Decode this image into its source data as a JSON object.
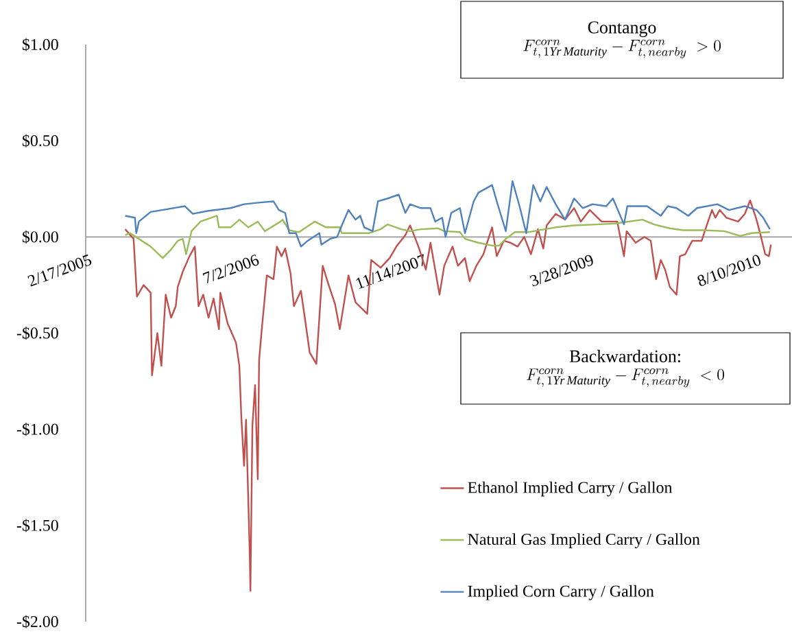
{
  "chart_data": {
    "type": "line",
    "xlim": [
      "2005-02-07",
      "2010-11-18"
    ],
    "xticks": [
      {
        "value": "2005-02-17",
        "label": "2/17/2005"
      },
      {
        "value": "2006-07-02",
        "label": "7/2/2006"
      },
      {
        "value": "2007-11-14",
        "label": "11/14/2007"
      },
      {
        "value": "2009-03-28",
        "label": "3/28/2009"
      },
      {
        "value": "2010-08-10",
        "label": "8/10/2010"
      }
    ],
    "ylim": [
      -2,
      1
    ],
    "yticks": [
      {
        "value": 1,
        "label": "$1.00"
      },
      {
        "value": 0.5,
        "label": "$0.50"
      },
      {
        "value": 0,
        "label": "$0.00"
      },
      {
        "value": -0.5,
        "label": "-$0.50"
      },
      {
        "value": -1,
        "label": "-$1.00"
      },
      {
        "value": -1.5,
        "label": "-$1.50"
      },
      {
        "value": -2,
        "label": "-$2.00"
      }
    ],
    "legend": "bottom right",
    "annotations": [
      "Contango",
      "F^{corn}_{t,\\,1\\mathit{Yr\\,Maturity}} - F^{corn}_{t,\\,nearby} \\; > 0",
      "Backwardation:",
      "F^{corn}_{t,\\,1\\mathit{Yr\\,Maturity}} - F^{corn}_{t,\\,nearby} \\; < 0"
    ],
    "series": [
      {
        "name": "Ethanol Implied Carry / Gallon",
        "color": "#c0504d",
        "x": [
          "2005-06-05",
          "2005-06-30",
          "2005-07-10",
          "2005-07-30",
          "2005-08-20",
          "2005-08-24",
          "2005-09-09",
          "2005-09-21",
          "2005-10-04",
          "2005-10-20",
          "2005-11-03",
          "2005-11-09",
          "2005-11-24",
          "2005-12-14",
          "2005-12-30",
          "2006-01-10",
          "2006-01-24",
          "2006-02-09",
          "2006-02-24",
          "2006-03-12",
          "2006-03-16",
          "2006-04-07",
          "2006-05-02",
          "2006-05-12",
          "2006-05-18",
          "2006-05-26",
          "2006-06-01",
          "2006-06-08",
          "2006-06-12",
          "2006-06-14",
          "2006-06-20",
          "2006-06-28",
          "2006-07-06",
          "2006-07-10",
          "2006-07-18",
          "2006-08-02",
          "2006-08-22",
          "2006-09-01",
          "2006-09-15",
          "2006-09-26",
          "2006-10-12",
          "2006-10-22",
          "2006-11-12",
          "2006-11-26",
          "2006-12-08",
          "2006-12-28",
          "2007-01-16",
          "2007-02-01",
          "2007-02-22",
          "2007-03-08",
          "2007-04-03",
          "2007-04-24",
          "2007-05-29",
          "2007-06-10",
          "2007-07-08",
          "2007-08-04",
          "2007-08-24",
          "2007-09-20",
          "2007-10-04",
          "2007-10-18",
          "2007-10-31",
          "2007-11-20",
          "2007-12-04",
          "2007-12-31",
          "2008-01-14",
          "2008-02-08",
          "2008-02-24",
          "2008-03-16",
          "2008-03-30",
          "2008-04-19",
          "2008-05-10",
          "2008-06-05",
          "2008-06-19",
          "2008-07-10",
          "2008-07-30",
          "2008-08-20",
          "2008-09-09",
          "2008-09-29",
          "2008-10-20",
          "2008-11-05",
          "2008-11-15",
          "2008-12-12",
          "2009-01-09",
          "2009-02-05",
          "2009-02-25",
          "2009-03-24",
          "2009-04-28",
          "2009-06-14",
          "2009-07-04",
          "2009-07-12",
          "2009-08-08",
          "2009-09-03",
          "2009-09-22",
          "2009-10-08",
          "2009-10-22",
          "2009-11-04",
          "2009-11-18",
          "2009-12-08",
          "2009-12-18",
          "2010-01-03",
          "2010-01-24",
          "2010-02-21",
          "2010-03-14",
          "2010-03-24",
          "2010-04-03",
          "2010-04-16",
          "2010-05-06",
          "2010-06-10",
          "2010-06-30",
          "2010-07-16",
          "2010-08-04",
          "2010-08-16",
          "2010-08-30",
          "2010-09-10",
          "2010-09-16"
        ],
        "values": [
          0.04,
          -0.01,
          -0.31,
          -0.25,
          -0.29,
          -0.72,
          -0.5,
          -0.67,
          -0.3,
          -0.42,
          -0.36,
          -0.26,
          -0.18,
          -0.1,
          -0.05,
          -0.36,
          -0.3,
          -0.42,
          -0.32,
          -0.48,
          -0.29,
          -0.45,
          -0.55,
          -0.67,
          -0.94,
          -1.19,
          -0.95,
          -1.39,
          -1.65,
          -1.84,
          -0.98,
          -0.77,
          -1.26,
          -0.64,
          -0.48,
          -0.2,
          -0.22,
          -0.05,
          -0.1,
          -0.06,
          -0.19,
          -0.36,
          -0.28,
          -0.45,
          -0.6,
          -0.66,
          -0.15,
          -0.24,
          -0.35,
          -0.48,
          -0.2,
          -0.34,
          -0.4,
          -0.12,
          -0.16,
          -0.11,
          -0.05,
          0.01,
          0.06,
          0.0,
          -0.06,
          -0.17,
          -0.03,
          -0.3,
          -0.15,
          -0.05,
          -0.15,
          -0.11,
          -0.23,
          -0.15,
          -0.09,
          0.05,
          -0.1,
          -0.02,
          -0.03,
          -0.05,
          0.0,
          -0.09,
          0.04,
          -0.06,
          0.06,
          0.12,
          0.09,
          0.15,
          0.08,
          0.14,
          0.08,
          0.08,
          -0.1,
          0.03,
          -0.03,
          0.0,
          -0.02,
          -0.22,
          -0.12,
          -0.17,
          -0.26,
          -0.3,
          -0.1,
          -0.09,
          -0.02,
          -0.02,
          0.09,
          0.14,
          0.1,
          0.14,
          0.1,
          0.08,
          0.12,
          0.19,
          0.09,
          0.01,
          -0.09,
          -0.1,
          -0.04
        ]
      },
      {
        "name": "Natural Gas Implied Carry / Gallon",
        "color": "#9bbb59",
        "x": [
          "2005-06-05",
          "2005-06-19",
          "2005-07-16",
          "2005-08-20",
          "2005-09-25",
          "2005-10-20",
          "2005-11-09",
          "2005-11-24",
          "2005-12-04",
          "2005-12-20",
          "2006-01-16",
          "2006-03-06",
          "2006-03-12",
          "2006-04-16",
          "2006-05-12",
          "2006-06-08",
          "2006-07-06",
          "2006-07-27",
          "2006-09-12",
          "2006-09-18",
          "2006-10-08",
          "2006-11-06",
          "2006-12-23",
          "2007-01-26",
          "2007-03-08",
          "2007-03-14",
          "2007-06-04",
          "2007-07-08",
          "2007-07-29",
          "2007-09-08",
          "2007-10-04",
          "2007-11-05",
          "2007-12-26",
          "2008-01-14",
          "2008-03-01",
          "2008-03-16",
          "2008-04-25",
          "2008-06-05",
          "2008-06-26",
          "2008-07-16",
          "2008-08-12",
          "2008-09-21",
          "2008-11-09",
          "2008-12-12",
          "2009-02-05",
          "2009-04-13",
          "2009-06-07",
          "2009-08-28",
          "2009-10-02",
          "2009-11-18",
          "2009-12-28",
          "2010-02-27",
          "2010-04-30",
          "2010-06-16",
          "2010-07-20",
          "2010-09-13"
        ],
        "values": [
          0.01,
          0.02,
          -0.01,
          -0.05,
          -0.11,
          -0.065,
          -0.02,
          -0.01,
          -0.09,
          0.03,
          0.08,
          0.11,
          0.05,
          0.05,
          0.09,
          0.05,
          0.08,
          0.03,
          0.08,
          0.09,
          0.035,
          0.025,
          0.08,
          0.05,
          0.05,
          0.02,
          0.02,
          0.04,
          0.065,
          0.04,
          0.03,
          0.04,
          0.045,
          0.03,
          0.025,
          -0.01,
          -0.03,
          -0.045,
          -0.045,
          -0.01,
          0.025,
          0.025,
          0.04,
          0.05,
          0.06,
          0.065,
          0.07,
          0.09,
          0.065,
          0.045,
          0.035,
          0.035,
          0.03,
          0.005,
          0.02,
          0.025
        ]
      },
      {
        "name": "Implied Corn Carry / Gallon",
        "color": "#4f81bd",
        "x": [
          "2005-06-05",
          "2005-07-04",
          "2005-07-08",
          "2005-07-16",
          "2005-08-20",
          "2005-09-23",
          "2005-11-30",
          "2005-12-24",
          "2006-02-05",
          "2006-04-16",
          "2006-05-26",
          "2006-07-18",
          "2006-08-22",
          "2006-09-07",
          "2006-09-26",
          "2006-10-08",
          "2006-10-28",
          "2006-11-12",
          "2006-12-02",
          "2007-01-06",
          "2007-01-12",
          "2007-02-07",
          "2007-02-28",
          "2007-03-14",
          "2007-04-03",
          "2007-04-24",
          "2007-05-08",
          "2007-05-20",
          "2007-06-14",
          "2007-06-30",
          "2007-07-29",
          "2007-08-31",
          "2007-09-20",
          "2007-10-04",
          "2007-11-05",
          "2007-12-04",
          "2007-12-18",
          "2008-01-08",
          "2008-01-18",
          "2008-02-04",
          "2008-03-01",
          "2008-03-16",
          "2008-04-11",
          "2008-04-25",
          "2008-06-05",
          "2008-06-19",
          "2008-07-16",
          "2008-08-05",
          "2008-08-26",
          "2008-09-15",
          "2008-10-06",
          "2008-10-27",
          "2008-11-15",
          "2008-12-12",
          "2009-01-09",
          "2009-02-05",
          "2009-03-03",
          "2009-04-01",
          "2009-05-12",
          "2009-06-01",
          "2009-07-04",
          "2009-07-14",
          "2009-09-11",
          "2009-10-22",
          "2009-11-12",
          "2009-12-08",
          "2010-01-12",
          "2010-02-07",
          "2010-04-09",
          "2010-05-14",
          "2010-06-30",
          "2010-08-04",
          "2010-08-24",
          "2010-09-13"
        ],
        "values": [
          0.11,
          0.1,
          0.02,
          0.08,
          0.13,
          0.14,
          0.16,
          0.12,
          0.135,
          0.15,
          0.17,
          0.18,
          0.185,
          0.14,
          0.125,
          0.02,
          0.02,
          -0.05,
          -0.02,
          0.02,
          -0.04,
          -0.01,
          0.0,
          0.06,
          0.14,
          0.09,
          0.11,
          0.05,
          0.03,
          0.185,
          0.2,
          0.22,
          0.125,
          0.17,
          0.15,
          0.15,
          0.08,
          0.1,
          0.0,
          0.125,
          0.15,
          0.02,
          0.185,
          0.23,
          0.27,
          0.185,
          0.03,
          0.29,
          0.16,
          0.02,
          0.27,
          0.185,
          0.26,
          0.17,
          0.09,
          0.2,
          0.15,
          0.17,
          0.16,
          0.2,
          0.065,
          0.16,
          0.16,
          0.11,
          0.16,
          0.15,
          0.11,
          0.15,
          0.17,
          0.14,
          0.16,
          0.14,
          0.1,
          0.04
        ]
      }
    ]
  }
}
